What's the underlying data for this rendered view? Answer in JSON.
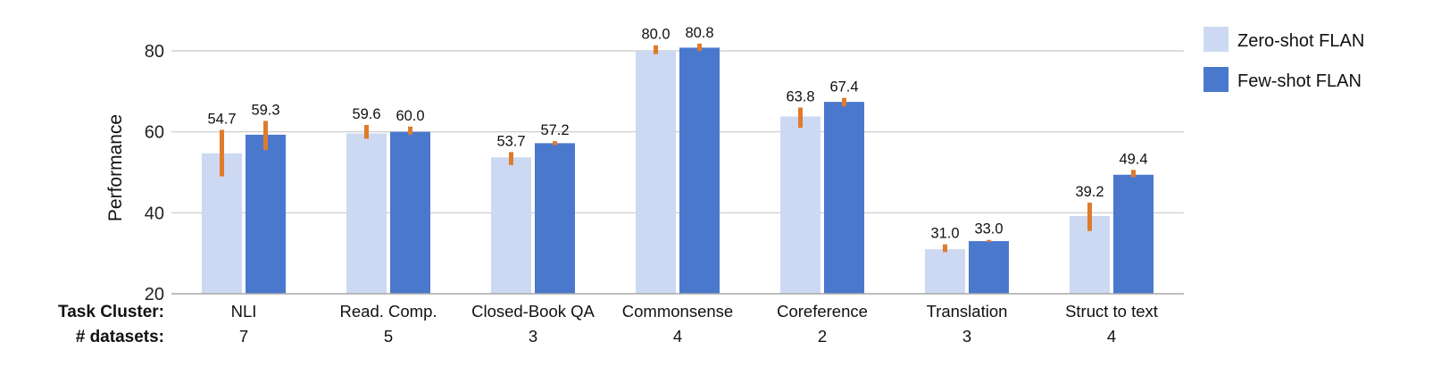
{
  "chart_data": {
    "type": "bar",
    "ylabel": "Performance",
    "ylim": [
      20,
      80
    ],
    "yticks": [
      20,
      40,
      60,
      80
    ],
    "grid": true,
    "legend_position": "top-right",
    "row_labels": {
      "category": "Task Cluster:",
      "count": "# datasets:"
    },
    "categories": [
      "NLI",
      "Read. Comp.",
      "Closed-Book QA",
      "Commonsense",
      "Coreference",
      "Translation",
      "Struct to text"
    ],
    "dataset_counts": [
      "7",
      "5",
      "3",
      "4",
      "2",
      "3",
      "4"
    ],
    "series": [
      {
        "name": "Zero-shot FLAN",
        "color": "#cdd9f2",
        "values": [
          54.7,
          59.6,
          53.7,
          80.0,
          63.8,
          31.0,
          39.2
        ],
        "labels": [
          "54.7",
          "59.6",
          "53.7",
          "80.0",
          "63.8",
          "31.0",
          "39.2"
        ],
        "err_low": [
          49.0,
          58.3,
          51.8,
          79.2,
          61.0,
          30.3,
          35.5
        ],
        "err_high": [
          60.5,
          61.7,
          55.0,
          81.4,
          66.0,
          32.2,
          42.5
        ]
      },
      {
        "name": "Few-shot FLAN",
        "color": "#4a78cd",
        "values": [
          59.3,
          60.0,
          57.2,
          80.8,
          67.4,
          33.0,
          49.4
        ],
        "labels": [
          "59.3",
          "60.0",
          "57.2",
          "80.8",
          "67.4",
          "33.0",
          "49.4"
        ],
        "err_low": [
          55.5,
          59.3,
          56.7,
          80.0,
          66.3,
          32.8,
          48.8
        ],
        "err_high": [
          62.7,
          61.3,
          57.7,
          81.8,
          68.4,
          33.3,
          50.6
        ]
      }
    ],
    "error_bar_color": "#e07b2c"
  }
}
